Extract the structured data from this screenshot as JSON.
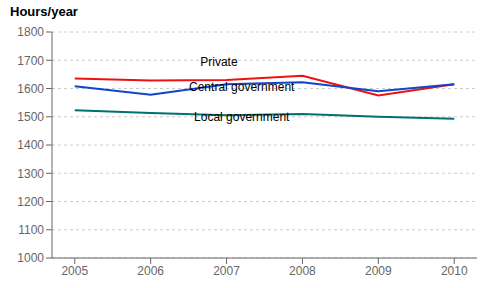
{
  "chart_data": {
    "type": "line",
    "y_label": "Hours/year",
    "x": [
      2005,
      2006,
      2007,
      2008,
      2009,
      2010
    ],
    "series": [
      {
        "name": "Private",
        "color": "#ee1111",
        "values": [
          1635,
          1628,
          1630,
          1645,
          1575,
          1615
        ]
      },
      {
        "name": "Central government",
        "color": "#1144cc",
        "values": [
          1608,
          1578,
          1615,
          1622,
          1590,
          1615
        ]
      },
      {
        "name": "Local government",
        "color": "#007070",
        "values": [
          1523,
          1513,
          1505,
          1510,
          1500,
          1493
        ]
      }
    ],
    "xlim": [
      2004.7,
      2010.3
    ],
    "xticks": [
      2005,
      2006,
      2007,
      2008,
      2009,
      2010
    ],
    "ylim": [
      1000,
      1800
    ],
    "yticks": [
      1000,
      1100,
      1200,
      1300,
      1400,
      1500,
      1600,
      1700,
      1800
    ],
    "grid": true,
    "annotations": [
      {
        "text": "Private",
        "x": 2006.9,
        "y": 1663
      },
      {
        "text": "Central government",
        "x": 2007.2,
        "y": 1574
      },
      {
        "text": "Local government",
        "x": 2007.2,
        "y": 1466
      }
    ]
  }
}
